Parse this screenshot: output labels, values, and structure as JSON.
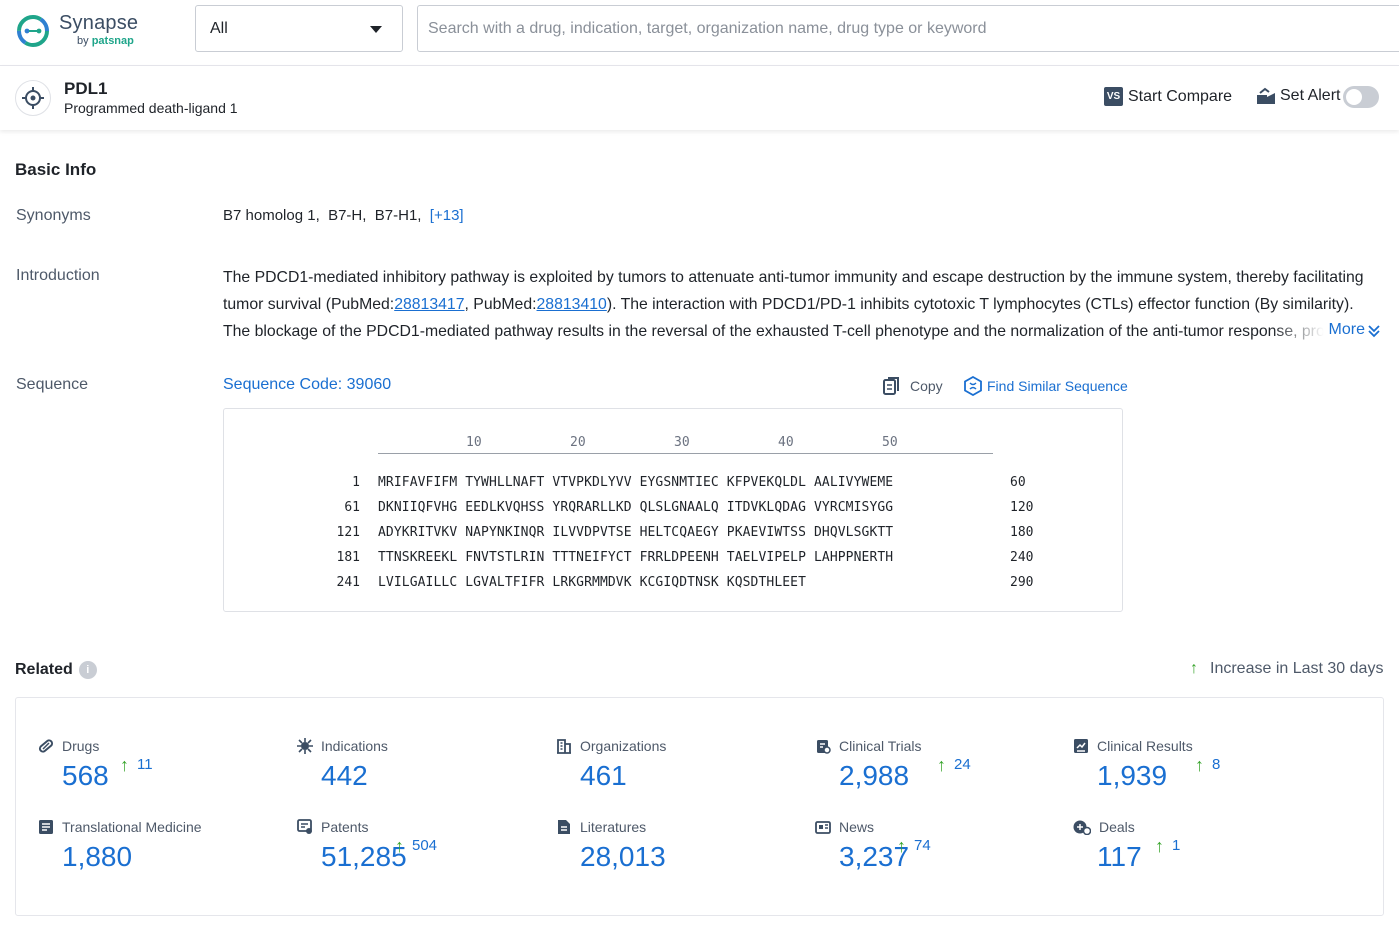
{
  "header": {
    "logo_name": "Synapse",
    "logo_by": "by",
    "logo_brand": "patsnap",
    "scope_value": "All",
    "search_placeholder": "Search with a drug, indication, target, organization name, drug type or keyword"
  },
  "target": {
    "symbol": "PDL1",
    "full_name": "Programmed death-ligand 1",
    "compare_badge": "VS",
    "compare_label": "Start Compare",
    "alert_label": "Set Alert",
    "alert_enabled": false
  },
  "basic_info": {
    "title": "Basic Info",
    "synonyms_label": "Synonyms",
    "synonyms": [
      "B7 homolog 1,",
      "B7-H,",
      "B7-H1,"
    ],
    "synonyms_more": "[+13]",
    "introduction_label": "Introduction",
    "intro_part1": "The PDCD1-mediated inhibitory pathway is exploited by tumors to attenuate anti-tumor immunity and escape destruction by the immune system, thereby facilitating tumor survival (PubMed:",
    "intro_link1": "28813417",
    "intro_part2": ", PubMed:",
    "intro_link2": "28813410",
    "intro_part3": "). The interaction with PDCD1/PD-1 inhibits cytotoxic T lymphocytes (CTLs) effector function (By similarity). The blockage of the PDCD1-mediated pathway results in the reversal of the exhausted T-cell phenotype and the normalization of the anti-tumor response, providing",
    "intro_more": "More",
    "sequence_label": "Sequence",
    "sequence_code": "Sequence Code: 39060",
    "copy_label": "Copy",
    "similar_label": "Find Similar Sequence"
  },
  "sequence": {
    "ticks": [
      "10",
      "20",
      "30",
      "40",
      "50"
    ],
    "rows": [
      {
        "start": "1",
        "residues": "MRIFAVFIFM TYWHLLNAFT VTVPKDLYVV EYGSNMTIEC KFPVEKQLDL AALIVYWEME",
        "end": "60"
      },
      {
        "start": "61",
        "residues": "DKNIIQFVHG EEDLKVQHSS YRQRARLLKD QLSLGNAALQ ITDVKLQDAG VYRCMISYGG",
        "end": "120"
      },
      {
        "start": "121",
        "residues": "ADYKRITVKV NAPYNKINQR ILVVDPVTSE HELTCQAEGY PKAEVIWTSS DHQVLSGKTT",
        "end": "180"
      },
      {
        "start": "181",
        "residues": "TTNSKREEKL FNVTSTLRIN TTTNEIFYCT FRRLDPEENH TAELVIPELP LAHPPNERTH",
        "end": "240"
      },
      {
        "start": "241",
        "residues": "LVILGAILLC LGVALTFIFR LRKGRMMDVK KCGIQDTNSK KQSDTHLEET",
        "end": "290"
      }
    ]
  },
  "related": {
    "title": "Related",
    "info_glyph": "i",
    "increase_arrow": "↑",
    "increase_label": "Increase in Last 30 days",
    "items": [
      {
        "label": "Drugs",
        "value": "568",
        "increase": "11",
        "icon": "pill-icon"
      },
      {
        "label": "Indications",
        "value": "442",
        "increase": "",
        "icon": "virus-icon"
      },
      {
        "label": "Organizations",
        "value": "461",
        "increase": "",
        "icon": "building-icon"
      },
      {
        "label": "Clinical Trials",
        "value": "2,988",
        "increase": "24",
        "icon": "clipboard-icon"
      },
      {
        "label": "Clinical Results",
        "value": "1,939",
        "increase": "8",
        "icon": "chart-doc-icon"
      },
      {
        "label": "Translational Medicine",
        "value": "1,880",
        "increase": "",
        "icon": "flask-doc-icon"
      },
      {
        "label": "Patents",
        "value": "51,285",
        "increase": "504",
        "icon": "patent-icon"
      },
      {
        "label": "Literatures",
        "value": "28,013",
        "increase": "",
        "icon": "document-icon"
      },
      {
        "label": "News",
        "value": "3,237",
        "increase": "74",
        "icon": "newspaper-icon"
      },
      {
        "label": "Deals",
        "value": "117",
        "increase": "1",
        "icon": "deal-icon"
      }
    ]
  }
}
